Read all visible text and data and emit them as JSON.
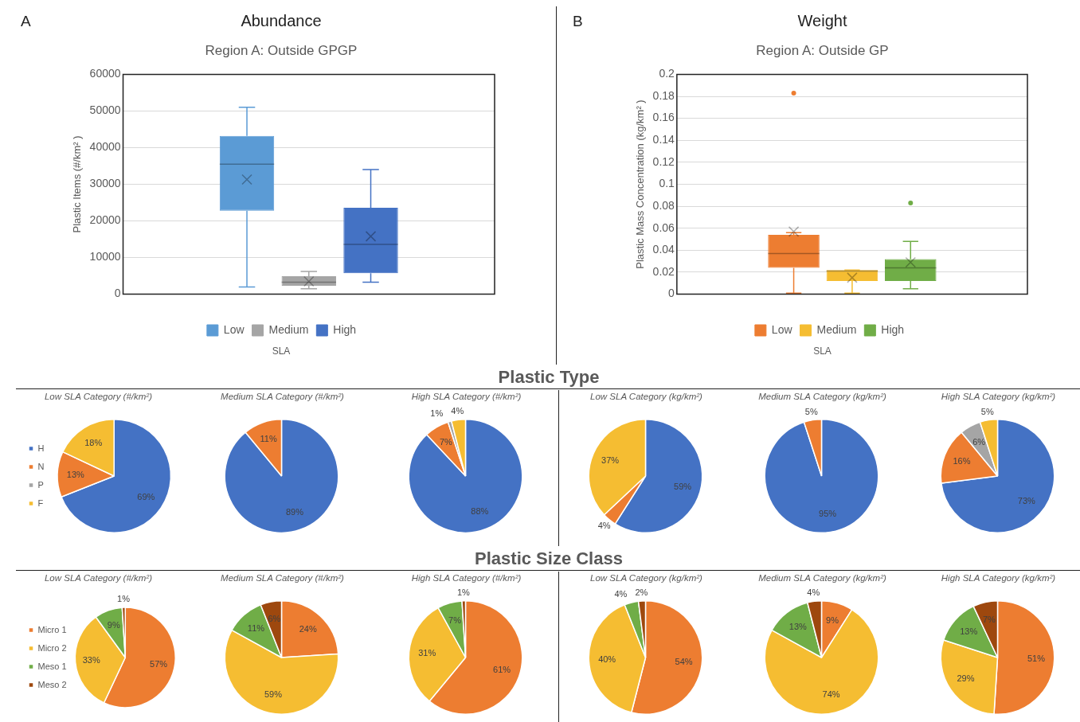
{
  "chart_data": [
    {
      "type": "box",
      "title": "Abundance",
      "subtitle": "Region A: Outside GPGP",
      "annotations": [
        "A"
      ],
      "xlabel": "SLA",
      "ylabel": "Plastic Items (#/km² )",
      "categories": [
        null
      ],
      "ylim": [
        0,
        60000
      ],
      "yticks": [
        0,
        10000,
        20000,
        30000,
        40000,
        50000,
        60000
      ],
      "grid": "y",
      "legend": "bottom",
      "series": [
        {
          "name": "Low",
          "color": "#5b9bd5",
          "boxes": [
            {
              "low": 2000,
              "q1": 22800,
              "median": 35500,
              "q3": 43200,
              "high": 51000,
              "mean": 31300
            }
          ]
        },
        {
          "name": "Medium",
          "color": "#a5a5a5",
          "boxes": [
            {
              "low": 1500,
              "q1": 2300,
              "median": 3300,
              "q3": 4900,
              "high": 6200,
              "mean": 3500
            }
          ]
        },
        {
          "name": "High",
          "color": "#4472c4",
          "boxes": [
            {
              "low": 3300,
              "q1": 5700,
              "median": 13600,
              "q3": 23600,
              "high": 34000,
              "mean": 15800
            }
          ]
        }
      ]
    },
    {
      "type": "box",
      "title": "Weight",
      "subtitle": "Region A: Outside GP",
      "annotations": [
        "B"
      ],
      "xlabel": "SLA",
      "ylabel": "Plastic Mass Concentration (kg/km² )",
      "categories": [
        null
      ],
      "ylim": [
        0,
        0.2
      ],
      "yticks": [
        0,
        0.02,
        0.04,
        0.06,
        0.08,
        0.1,
        0.12,
        0.14,
        0.16,
        0.18,
        0.2
      ],
      "grid": "y",
      "legend": "bottom",
      "series": [
        {
          "name": "Low",
          "color": "#ed7d31",
          "boxes": [
            {
              "low": 0.001,
              "q1": 0.024,
              "median": 0.037,
              "q3": 0.054,
              "high": 0.056,
              "mean": 0.057,
              "outliers": [
                0.183
              ]
            }
          ]
        },
        {
          "name": "Medium",
          "color": "#f5bd32",
          "boxes": [
            {
              "low": 0.001,
              "q1": 0.012,
              "median": 0.021,
              "q3": 0.022,
              "high": 0.022,
              "mean": 0.015
            }
          ]
        },
        {
          "name": "High",
          "color": "#70ad47",
          "boxes": [
            {
              "low": 0.005,
              "q1": 0.012,
              "median": 0.024,
              "q3": 0.032,
              "high": 0.048,
              "mean": 0.029,
              "outliers": [
                0.083
              ]
            }
          ]
        }
      ]
    },
    {
      "type": "other",
      "title": "Plastic Type"
    },
    {
      "type": "pie",
      "subtitle": "Low SLA Category (#/km²)",
      "legend": "left",
      "categories": [
        "H",
        "N",
        "P",
        "F"
      ],
      "colors": [
        "#4472c4",
        "#ed7d31",
        "#a5a5a5",
        "#f5bd32"
      ],
      "values": [
        69,
        13,
        0,
        18
      ],
      "value_labels": [
        "69%",
        "13%",
        null,
        "18%"
      ]
    },
    {
      "type": "pie",
      "subtitle": "Medium SLA Category (#/km²)",
      "categories": [
        null,
        null,
        null,
        null
      ],
      "colors": [
        "#4472c4",
        "#ed7d31",
        "#a5a5a5",
        "#f5bd32"
      ],
      "values": [
        89,
        11,
        0,
        0
      ],
      "value_labels": [
        "89%",
        "11%",
        null,
        null
      ]
    },
    {
      "type": "pie",
      "subtitle": "High SLA Category (#/km²)",
      "categories": [
        null,
        null,
        null,
        null
      ],
      "colors": [
        "#4472c4",
        "#ed7d31",
        "#a5a5a5",
        "#f5bd32"
      ],
      "values": [
        88,
        7,
        1,
        4
      ],
      "value_labels": [
        "88%",
        "7%",
        "1%",
        "4%"
      ]
    },
    {
      "type": "pie",
      "subtitle": "Low SLA Category (kg/km²)",
      "categories": [
        null,
        null,
        null,
        null
      ],
      "colors": [
        "#4472c4",
        "#ed7d31",
        "#a5a5a5",
        "#f5bd32"
      ],
      "values": [
        59,
        4,
        0,
        37
      ],
      "value_labels": [
        "59%",
        "4%",
        null,
        "37%"
      ]
    },
    {
      "type": "pie",
      "subtitle": "Medium SLA Category (kg/km²)",
      "categories": [
        null,
        null,
        null,
        null
      ],
      "colors": [
        "#4472c4",
        "#ed7d31",
        "#a5a5a5",
        "#f5bd32"
      ],
      "values": [
        95,
        5,
        0,
        0
      ],
      "value_labels": [
        "95%",
        "5%",
        null,
        null
      ]
    },
    {
      "type": "pie",
      "subtitle": "High SLA Category (kg/km²)",
      "categories": [
        null,
        null,
        null,
        null
      ],
      "colors": [
        "#4472c4",
        "#ed7d31",
        "#a5a5a5",
        "#f5bd32"
      ],
      "values": [
        73,
        16,
        6,
        5
      ],
      "value_labels": [
        "73%",
        "16%",
        "6%",
        "5%"
      ]
    },
    {
      "type": "other",
      "title": "Plastic Size Class"
    },
    {
      "type": "pie",
      "subtitle": "Low SLA Category (#/km²)",
      "legend": "left",
      "categories": [
        "Micro 1",
        "Micro 2",
        "Meso 1",
        "Meso 2"
      ],
      "colors": [
        "#ed7d31",
        "#f5bd32",
        "#70ad47",
        "#9e480e"
      ],
      "values": [
        57,
        33,
        9,
        1
      ],
      "value_labels": [
        "57%",
        "33%",
        "9%",
        "1%"
      ]
    },
    {
      "type": "pie",
      "subtitle": "Medium SLA Category (#/km²)",
      "categories": [
        null,
        null,
        null,
        null
      ],
      "colors": [
        "#ed7d31",
        "#f5bd32",
        "#70ad47",
        "#9e480e"
      ],
      "values": [
        24,
        59,
        11,
        6
      ],
      "value_labels": [
        "24%",
        "59%",
        "11%",
        "6%"
      ]
    },
    {
      "type": "pie",
      "subtitle": "High SLA Category (#/km²)",
      "categories": [
        null,
        null,
        null,
        null
      ],
      "colors": [
        "#ed7d31",
        "#f5bd32",
        "#70ad47",
        "#9e480e"
      ],
      "values": [
        61,
        31,
        7,
        1
      ],
      "value_labels": [
        "61%",
        "31%",
        "7%",
        "1%"
      ]
    },
    {
      "type": "pie",
      "subtitle": "Low SLA Category (kg/km²)",
      "categories": [
        null,
        null,
        null,
        null
      ],
      "colors": [
        "#ed7d31",
        "#f5bd32",
        "#70ad47",
        "#9e480e"
      ],
      "values": [
        54,
        40,
        4,
        2
      ],
      "value_labels": [
        "54%",
        "40%",
        "4%",
        "2%"
      ]
    },
    {
      "type": "pie",
      "subtitle": "Medium SLA Category (kg/km²)",
      "categories": [
        null,
        null,
        null,
        null
      ],
      "colors": [
        "#ed7d31",
        "#f5bd32",
        "#70ad47",
        "#9e480e"
      ],
      "values": [
        9,
        74,
        13,
        4
      ],
      "value_labels": [
        "9%",
        "74%",
        "13%",
        "4%"
      ]
    },
    {
      "type": "pie",
      "subtitle": "High SLA Category (kg/km²)",
      "categories": [
        null,
        null,
        null,
        null
      ],
      "colors": [
        "#ed7d31",
        "#f5bd32",
        "#70ad47",
        "#9e480e"
      ],
      "values": [
        51,
        29,
        13,
        7
      ],
      "value_labels": [
        "51%",
        "29%",
        "13%",
        "7%"
      ]
    }
  ]
}
